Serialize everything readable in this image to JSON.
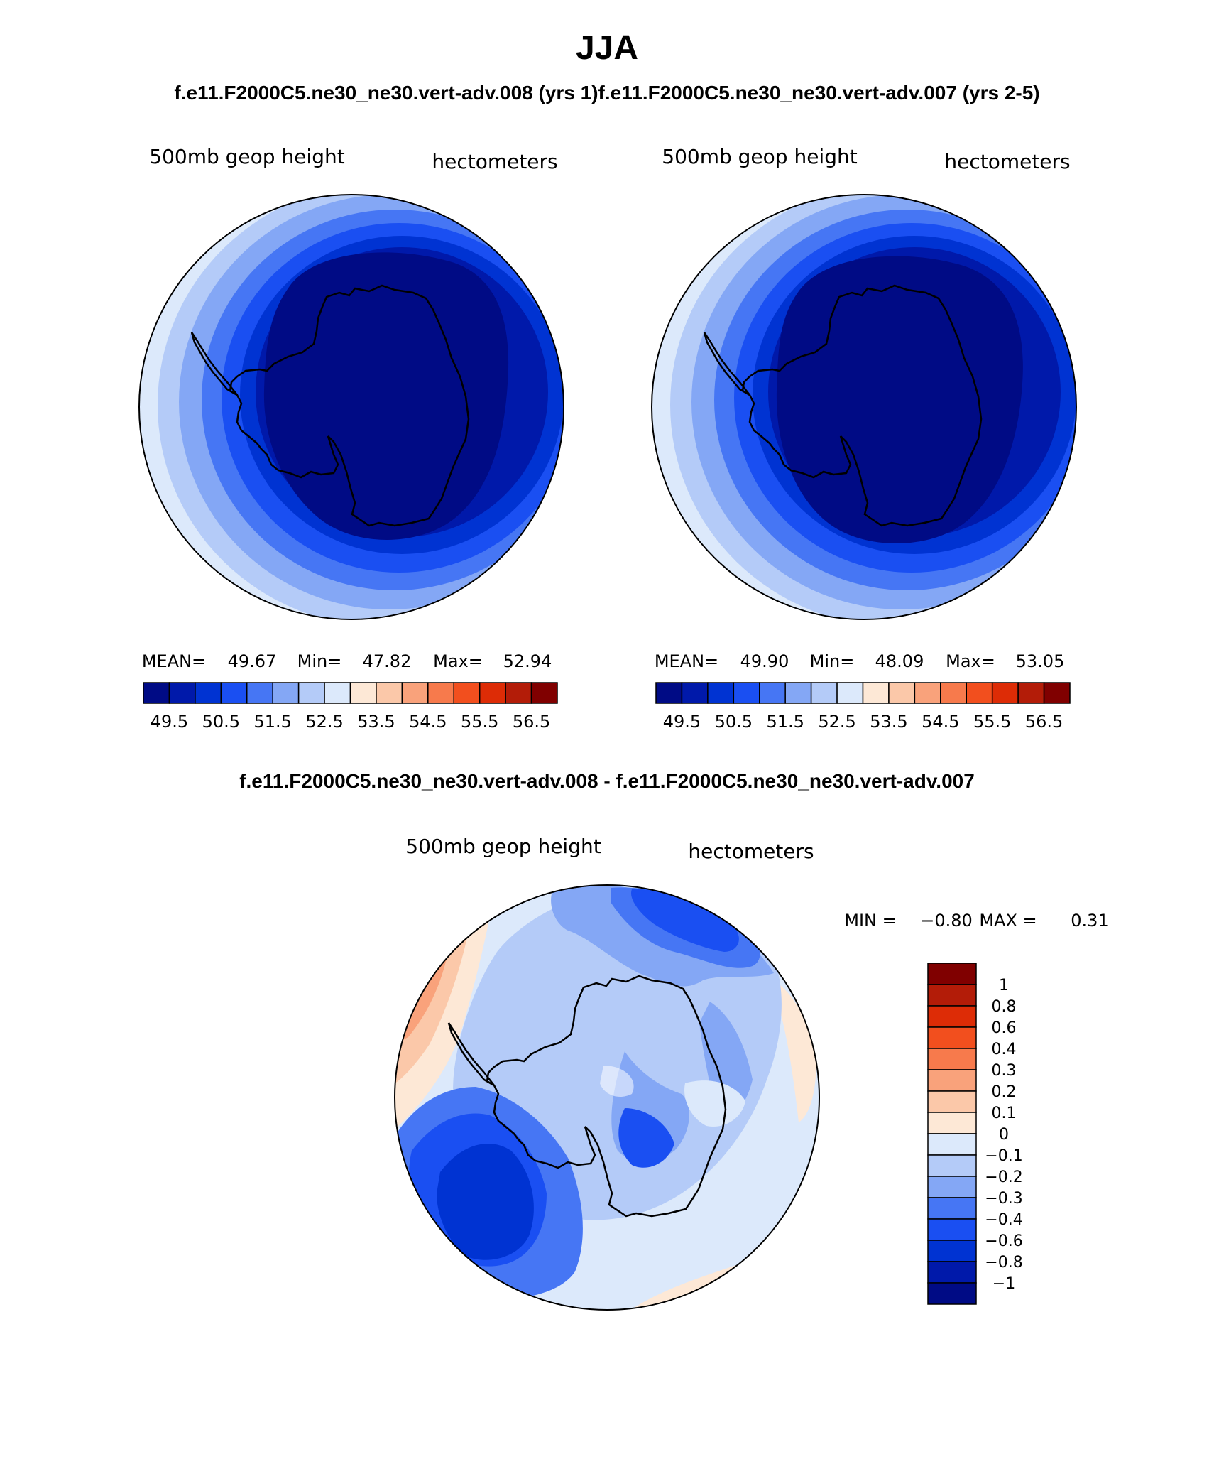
{
  "page": {
    "title": "JJA",
    "run_titles": "f.e11.F2000C5.ne30_ne30.vert-adv.008 (yrs 1)f.e11.F2000C5.ne30_ne30.vert-adv.007 (yrs 2-5)",
    "diff_title": "f.e11.F2000C5.ne30_ne30.vert-adv.008 - f.e11.F2000C5.ne30_ne30.vert-adv.007"
  },
  "panels": [
    {
      "id": "left",
      "variable": "500mb geop height",
      "units": "hectometers",
      "stats": {
        "mean_label": "MEAN=",
        "mean": "49.67",
        "min_label": "Min=",
        "min": "47.82",
        "max_label": "Max=",
        "max": "52.94"
      }
    },
    {
      "id": "right",
      "variable": "500mb geop height",
      "units": "hectometers",
      "stats": {
        "mean_label": "MEAN=",
        "mean": "49.90",
        "min_label": "Min=",
        "min": "48.09",
        "max_label": "Max=",
        "max": "53.05"
      }
    },
    {
      "id": "diff",
      "variable": "500mb geop height",
      "units": "hectometers",
      "stats": {
        "min_label": "MIN =",
        "min": "−0.80",
        "max_label": "MAX =",
        "max": "0.31"
      }
    }
  ],
  "colorbars": {
    "abs": {
      "labels": [
        "49.5",
        "50.5",
        "51.5",
        "52.5",
        "53.5",
        "54.5",
        "55.5",
        "56.5"
      ],
      "colors": [
        "#000b85",
        "#0019aa",
        "#0033d2",
        "#1a4ff2",
        "#4676f4",
        "#84a7f5",
        "#b4cbf8",
        "#dce9fb",
        "#fde8d6",
        "#fbc8a9",
        "#f9a27b",
        "#f77a4c",
        "#f24f1e",
        "#dd2c06",
        "#b31c08",
        "#800000"
      ]
    },
    "diff": {
      "labels": [
        "1",
        "0.8",
        "0.6",
        "0.4",
        "0.3",
        "0.2",
        "0.1",
        "0",
        "−0.1",
        "−0.2",
        "−0.3",
        "−0.4",
        "−0.6",
        "−0.8",
        "−1"
      ],
      "colors": [
        "#800000",
        "#b31c08",
        "#dd2c06",
        "#f24f1e",
        "#f77a4c",
        "#f9a27b",
        "#fbc8a9",
        "#fde8d6",
        "#dce9fb",
        "#b4cbf8",
        "#84a7f5",
        "#4676f4",
        "#1a4ff2",
        "#0033d2",
        "#0019aa",
        "#000b85"
      ]
    }
  },
  "maps": {
    "fills": {
      "low": "#000b85",
      "ring1": "#0019aa",
      "ring2": "#0033d2",
      "ring3": "#1a4ff2",
      "ring4": "#4676f4",
      "ring5": "#84a7f5",
      "ring6": "#b4cbf8",
      "ring7": "#dce9fb",
      "pos1": "#fde8d6",
      "pos2": "#fbc8a9",
      "pos3": "#f9a27b"
    }
  }
}
